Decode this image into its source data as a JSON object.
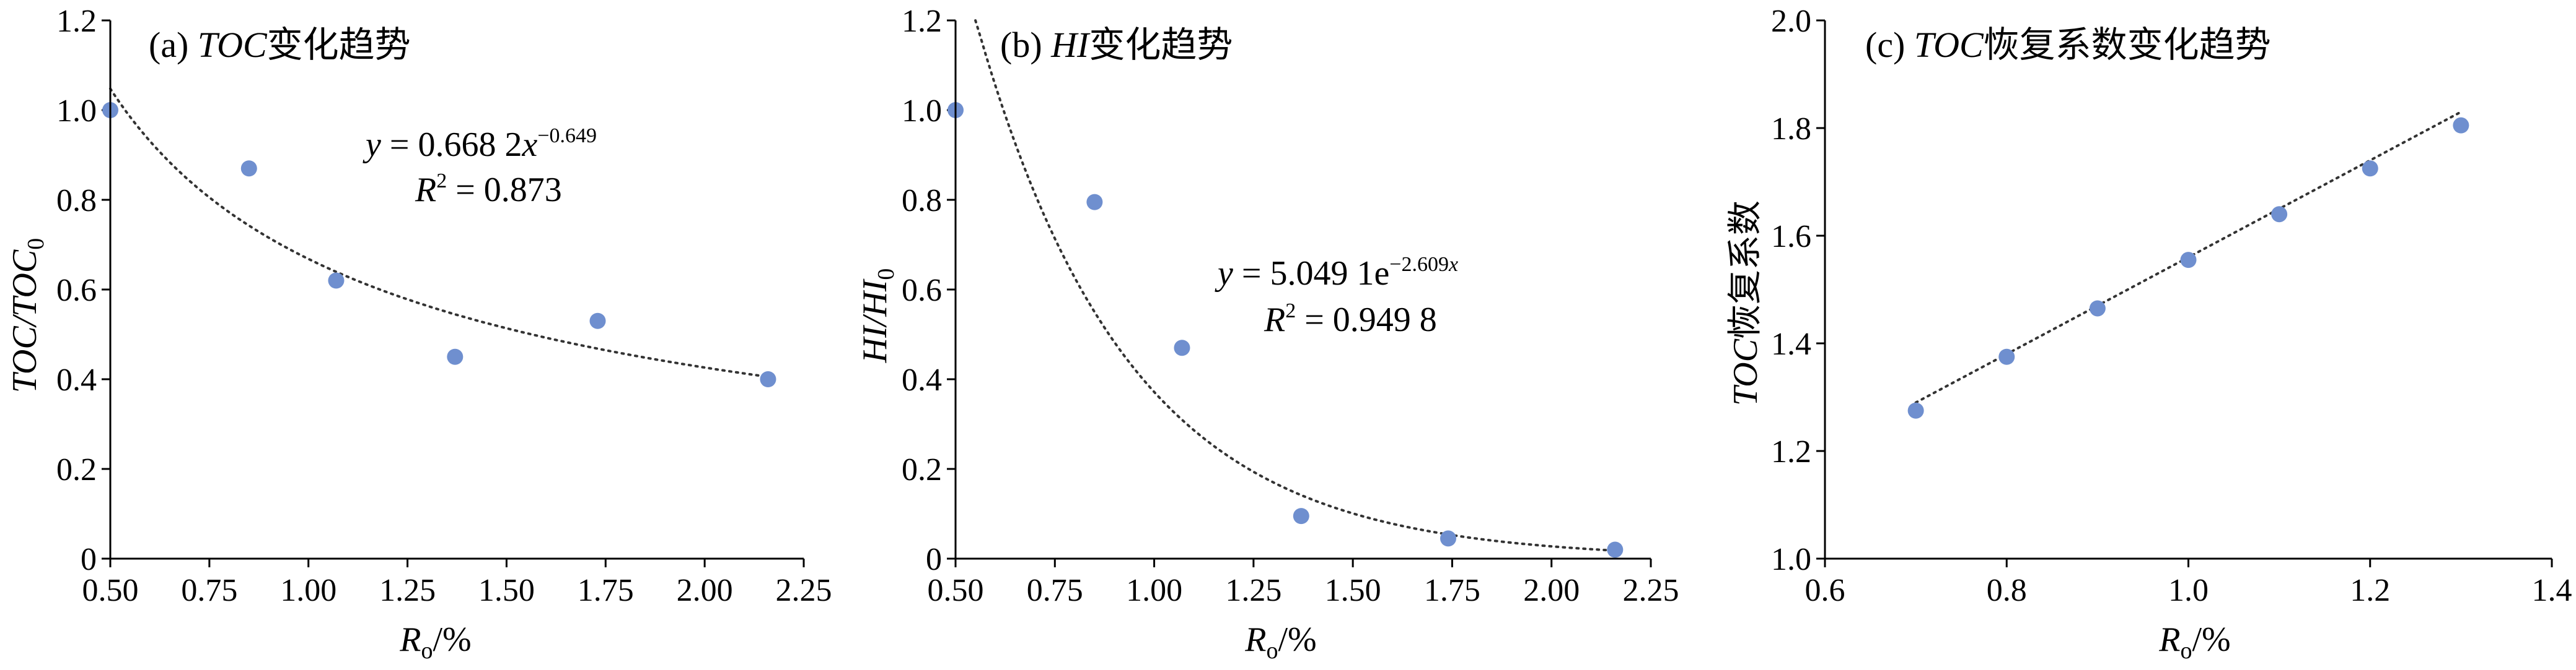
{
  "chart_data": [
    {
      "id": "a",
      "type": "scatter",
      "title_prefix": "(a) ",
      "title_italic": "TOC",
      "title_suffix": "变化趋势",
      "ylabel_main": "TOC/TOC",
      "ylabel_sub": "0",
      "xlabel_main": "R",
      "xlabel_sub": "o",
      "xlabel_suffix": "/%",
      "xlim": [
        0.5,
        2.25
      ],
      "ylim": [
        0,
        1.2
      ],
      "xticks": [
        "0.50",
        "0.75",
        "1.00",
        "1.25",
        "1.50",
        "1.75",
        "2.00",
        "2.25"
      ],
      "yticks": [
        "0",
        "0.2",
        "0.4",
        "0.6",
        "0.8",
        "1.0",
        "1.2"
      ],
      "points": [
        {
          "x": 0.5,
          "y": 1.0
        },
        {
          "x": 0.85,
          "y": 0.87
        },
        {
          "x": 1.07,
          "y": 0.62
        },
        {
          "x": 1.37,
          "y": 0.45
        },
        {
          "x": 1.73,
          "y": 0.53
        },
        {
          "x": 2.16,
          "y": 0.4
        }
      ],
      "trendline": {
        "model": "power",
        "a": 0.6682,
        "b": -0.649,
        "x_range": [
          0.5,
          2.16
        ]
      },
      "equation": {
        "y_var": "y",
        "eq_text": " = 0.668 2",
        "x_var": "x",
        "exp": "−0.649",
        "r2_var": "R",
        "r2_sup": "2",
        "r2_text": " = 0.873"
      }
    },
    {
      "id": "b",
      "type": "scatter",
      "title_prefix": "(b) ",
      "title_italic": "HI",
      "title_suffix": "变化趋势",
      "ylabel_main": "HI/HI",
      "ylabel_sub": "0",
      "xlabel_main": "R",
      "xlabel_sub": "o",
      "xlabel_suffix": "/%",
      "xlim": [
        0.5,
        2.25
      ],
      "ylim": [
        0,
        1.2
      ],
      "xticks": [
        "0.50",
        "0.75",
        "1.00",
        "1.25",
        "1.50",
        "1.75",
        "2.00",
        "2.25"
      ],
      "yticks": [
        "0",
        "0.2",
        "0.4",
        "0.6",
        "0.8",
        "1.0",
        "1.2"
      ],
      "points": [
        {
          "x": 0.5,
          "y": 1.0
        },
        {
          "x": 0.85,
          "y": 0.795
        },
        {
          "x": 1.07,
          "y": 0.47
        },
        {
          "x": 1.37,
          "y": 0.095
        },
        {
          "x": 1.74,
          "y": 0.045
        },
        {
          "x": 2.16,
          "y": 0.02
        }
      ],
      "trendline": {
        "model": "exp",
        "a": 5.0491,
        "b": -2.609,
        "x_range": [
          0.55,
          2.16
        ]
      },
      "equation": {
        "y_var": "y",
        "eq_text": " = 5.049 1e",
        "x_var": "x",
        "exp": "−2.609",
        "r2_var": "R",
        "r2_sup": "2",
        "r2_text": " = 0.949 8"
      }
    },
    {
      "id": "c",
      "type": "scatter",
      "title_prefix": "(c) ",
      "title_italic": "TOC",
      "title_suffix": "恢复系数变化趋势",
      "ylabel_main": "TOC",
      "ylabel_suffix": "恢复系数",
      "xlabel_main": "R",
      "xlabel_sub": "o",
      "xlabel_suffix": "/%",
      "xlim": [
        0.6,
        1.4
      ],
      "ylim": [
        1.0,
        2.0
      ],
      "xticks": [
        "0.6",
        "0.8",
        "1.0",
        "1.2",
        "1.4"
      ],
      "yticks": [
        "1.0",
        "1.2",
        "1.4",
        "1.6",
        "1.8",
        "2.0"
      ],
      "points": [
        {
          "x": 0.7,
          "y": 1.275
        },
        {
          "x": 0.8,
          "y": 1.375
        },
        {
          "x": 0.9,
          "y": 1.465
        },
        {
          "x": 1.0,
          "y": 1.555
        },
        {
          "x": 1.1,
          "y": 1.64
        },
        {
          "x": 1.2,
          "y": 1.725
        },
        {
          "x": 1.3,
          "y": 1.805
        }
      ],
      "trendline": {
        "model": "linear",
        "x_range": [
          0.7,
          1.3
        ],
        "y_range": [
          1.29,
          1.83
        ]
      }
    }
  ]
}
